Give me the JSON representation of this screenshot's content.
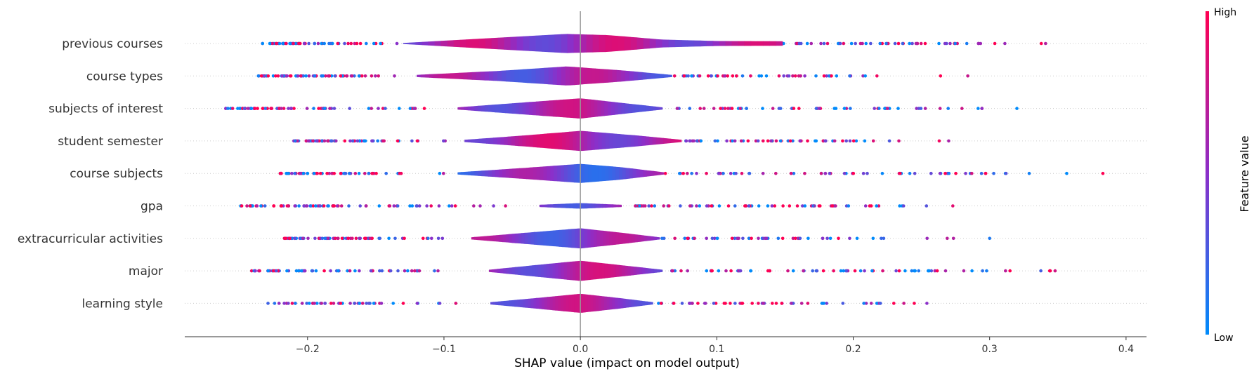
{
  "chart_data": {
    "type": "scatter",
    "variant": "shap-layered-violin-summary",
    "xlabel": "SHAP value (impact on model output)",
    "xlim": [
      -0.29,
      0.415
    ],
    "xticks": [
      -0.2,
      -0.1,
      0.0,
      0.1,
      0.2,
      0.3,
      0.4
    ],
    "xtick_labels": [
      "−0.2",
      "−0.1",
      "0.0",
      "0.1",
      "0.2",
      "0.3",
      "0.4"
    ],
    "zero_line": true,
    "colorbar": {
      "title": "Feature value",
      "high_label": "High",
      "low_label": "Low",
      "high_color": "#ff0052",
      "mid_color": "#8b2fc9",
      "low_color": "#008bfb"
    },
    "features": [
      {
        "name": "previous courses",
        "min": -0.233,
        "max": 0.341,
        "violin_lo": -0.13,
        "violin_hi": 0.148,
        "dense": [
          [
            -0.13,
            0.05
          ],
          [
            -0.04,
            0.65
          ],
          [
            -0.01,
            0.85
          ],
          [
            0.02,
            0.75
          ],
          [
            0.06,
            0.35
          ],
          [
            0.1,
            0.22
          ],
          [
            0.148,
            0.2
          ]
        ],
        "color_bias": 0.2,
        "n_points": 110
      },
      {
        "name": "course types",
        "min": -0.236,
        "max": 0.284,
        "violin_lo": -0.12,
        "violin_hi": 0.067,
        "dense": [
          [
            -0.12,
            0.1
          ],
          [
            -0.06,
            0.45
          ],
          [
            -0.01,
            0.85
          ],
          [
            0.03,
            0.5
          ],
          [
            0.067,
            0.1
          ]
        ],
        "color_bias": 0.0,
        "n_points": 120
      },
      {
        "name": "subjects of interest",
        "min": -0.26,
        "max": 0.32,
        "violin_lo": -0.09,
        "violin_hi": 0.06,
        "dense": [
          [
            -0.09,
            0.1
          ],
          [
            -0.04,
            0.55
          ],
          [
            0.0,
            0.9
          ],
          [
            0.03,
            0.5
          ],
          [
            0.06,
            0.1
          ]
        ],
        "color_bias": 0.1,
        "n_points": 120
      },
      {
        "name": "student semester",
        "min": -0.21,
        "max": 0.27,
        "violin_lo": -0.085,
        "violin_hi": 0.074,
        "dense": [
          [
            -0.085,
            0.1
          ],
          [
            -0.04,
            0.5
          ],
          [
            0.0,
            0.9
          ],
          [
            0.04,
            0.5
          ],
          [
            0.074,
            0.1
          ]
        ],
        "color_bias": 0.25,
        "n_points": 120
      },
      {
        "name": "course subjects",
        "min": -0.22,
        "max": 0.383,
        "violin_lo": -0.09,
        "violin_hi": 0.061,
        "dense": [
          [
            -0.09,
            0.1
          ],
          [
            -0.04,
            0.5
          ],
          [
            0.0,
            0.85
          ],
          [
            0.03,
            0.55
          ],
          [
            0.061,
            0.1
          ]
        ],
        "color_bias": -0.2,
        "n_points": 120
      },
      {
        "name": "gpa",
        "min": -0.249,
        "max": 0.273,
        "violin_lo": -0.03,
        "violin_hi": 0.03,
        "dense": [
          [
            -0.03,
            0.1
          ],
          [
            0.0,
            0.25
          ],
          [
            0.03,
            0.1
          ]
        ],
        "color_bias": 0.0,
        "n_points": 140
      },
      {
        "name": "extracurricular activities",
        "min": -0.217,
        "max": 0.3,
        "violin_lo": -0.08,
        "violin_hi": 0.058,
        "dense": [
          [
            -0.08,
            0.1
          ],
          [
            -0.03,
            0.6
          ],
          [
            0.0,
            0.9
          ],
          [
            0.03,
            0.5
          ],
          [
            0.058,
            0.1
          ]
        ],
        "color_bias": -0.05,
        "n_points": 120
      },
      {
        "name": "major",
        "min": -0.241,
        "max": 0.348,
        "violin_lo": -0.067,
        "violin_hi": 0.06,
        "dense": [
          [
            -0.067,
            0.1
          ],
          [
            -0.03,
            0.55
          ],
          [
            0.0,
            0.9
          ],
          [
            0.03,
            0.5
          ],
          [
            0.06,
            0.1
          ]
        ],
        "color_bias": 0.15,
        "n_points": 120
      },
      {
        "name": "learning style",
        "min": -0.229,
        "max": 0.254,
        "violin_lo": -0.066,
        "violin_hi": 0.053,
        "dense": [
          [
            -0.066,
            0.1
          ],
          [
            -0.03,
            0.5
          ],
          [
            0.0,
            0.85
          ],
          [
            0.03,
            0.45
          ],
          [
            0.053,
            0.1
          ]
        ],
        "color_bias": 0.1,
        "n_points": 100
      }
    ]
  }
}
